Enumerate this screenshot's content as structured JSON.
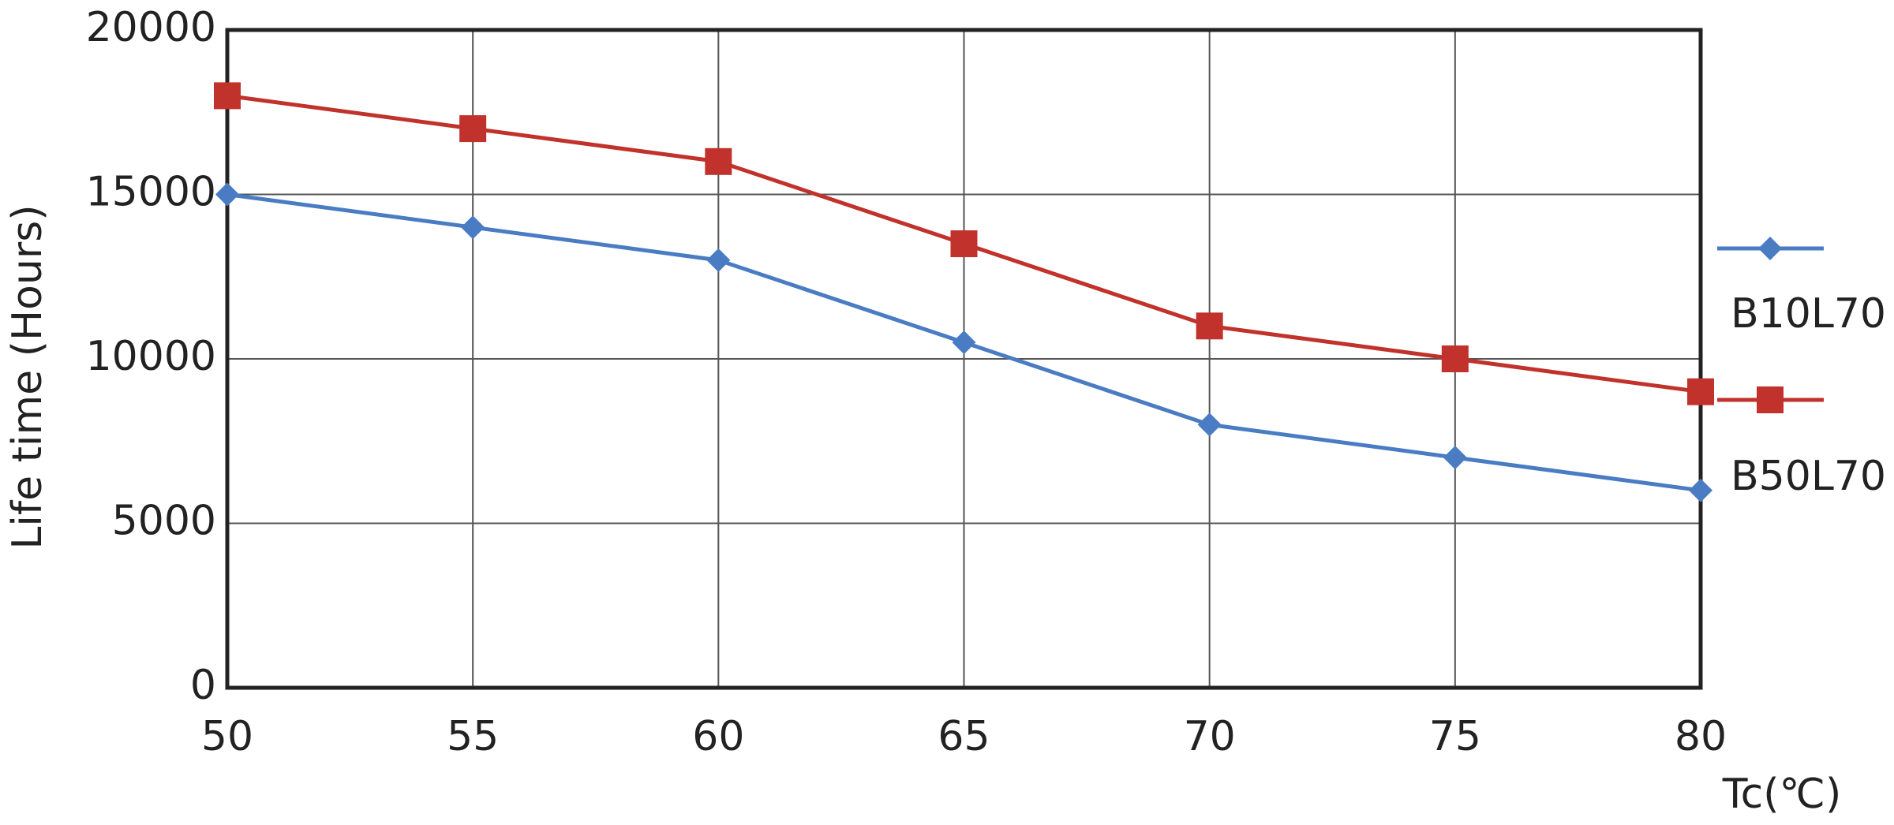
{
  "chart_data": {
    "type": "line",
    "x_label": "Tc(℃)",
    "y_label": "Life time (Hours)",
    "x": [
      50,
      55,
      60,
      65,
      70,
      75,
      80
    ],
    "series": [
      {
        "name": "B10L70",
        "color": "#4a7cc4",
        "marker": "diamond",
        "values": [
          15000,
          14000,
          13000,
          10500,
          8000,
          7000,
          6000
        ]
      },
      {
        "name": "B50L70",
        "color": "#c0322b",
        "marker": "square",
        "values": [
          18000,
          17000,
          16000,
          13500,
          11000,
          10000,
          9000
        ]
      }
    ],
    "xlim": [
      50,
      80
    ],
    "xticks": [
      50,
      55,
      60,
      65,
      70,
      75,
      80
    ],
    "ylim": [
      0,
      20000
    ],
    "yticks": [
      0,
      5000,
      10000,
      15000,
      20000
    ],
    "grid": true
  }
}
